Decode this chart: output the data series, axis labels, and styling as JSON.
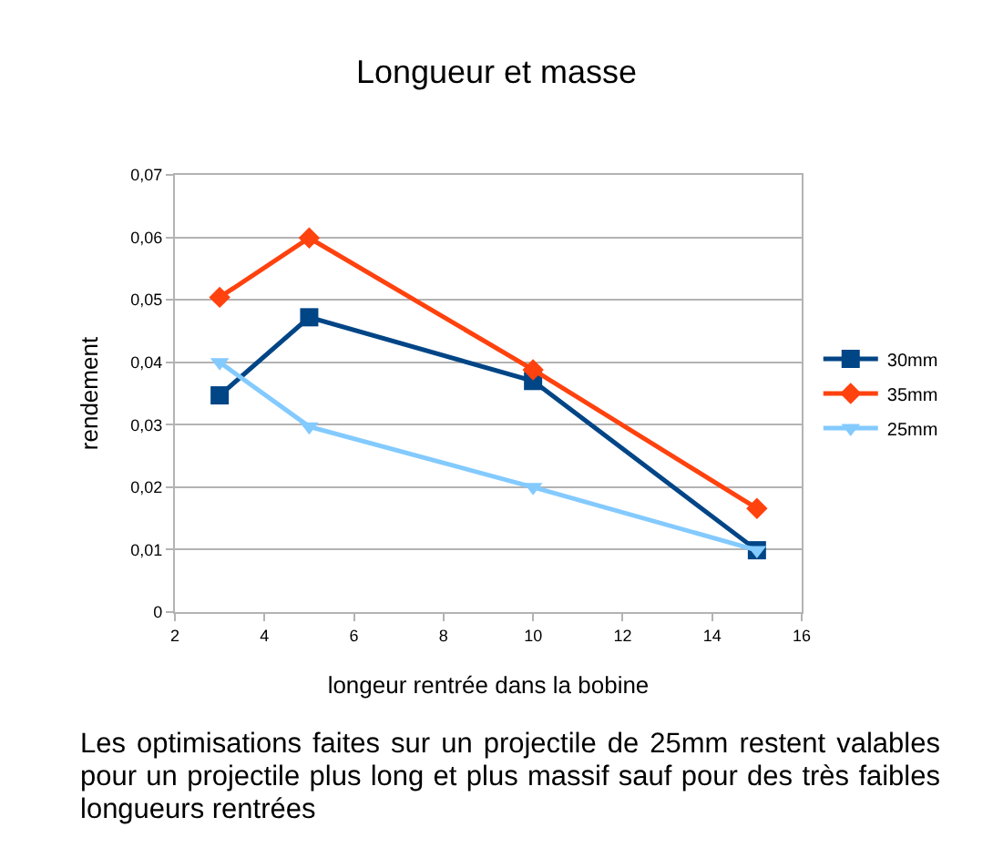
{
  "chart_data": {
    "type": "line",
    "title": "Longueur et masse",
    "xlabel": "longeur rentrée dans la bobine",
    "ylabel": "rendement",
    "x": [
      3,
      5,
      10,
      15
    ],
    "series": [
      {
        "name": "30mm",
        "color": "#004586",
        "marker": "square",
        "values": [
          0.0347,
          0.0472,
          0.037,
          0.0099
        ]
      },
      {
        "name": "35mm",
        "color": "#ff420e",
        "marker": "diamond",
        "values": [
          0.0504,
          0.0599,
          0.0388,
          0.0166
        ]
      },
      {
        "name": "25mm",
        "color": "#83caff",
        "marker": "triangle",
        "values": [
          0.04,
          0.0297,
          0.02,
          0.0099
        ]
      }
    ],
    "xlim": [
      2,
      16
    ],
    "xticks": [
      2,
      4,
      6,
      8,
      10,
      12,
      14,
      16
    ],
    "ylim": [
      0,
      0.07
    ],
    "yticks": [
      0,
      {
        "value": 0.01,
        "label": "0,01"
      },
      {
        "value": 0.02,
        "label": "0,02"
      },
      {
        "value": 0.03,
        "label": "0,03"
      },
      {
        "value": 0.04,
        "label": "0,04"
      },
      {
        "value": 0.05,
        "label": "0,05"
      },
      {
        "value": 0.06,
        "label": "0,06"
      },
      {
        "value": 0.07,
        "label": "0,07"
      }
    ],
    "grid": "y",
    "legend": "right",
    "line_style": "solid",
    "annotations": [
      "Les optimisations faites sur un projectile de 25mm restent valables pour un projectile plus long et plus massif sauf pour des très faibles longueurs rentrées"
    ]
  }
}
